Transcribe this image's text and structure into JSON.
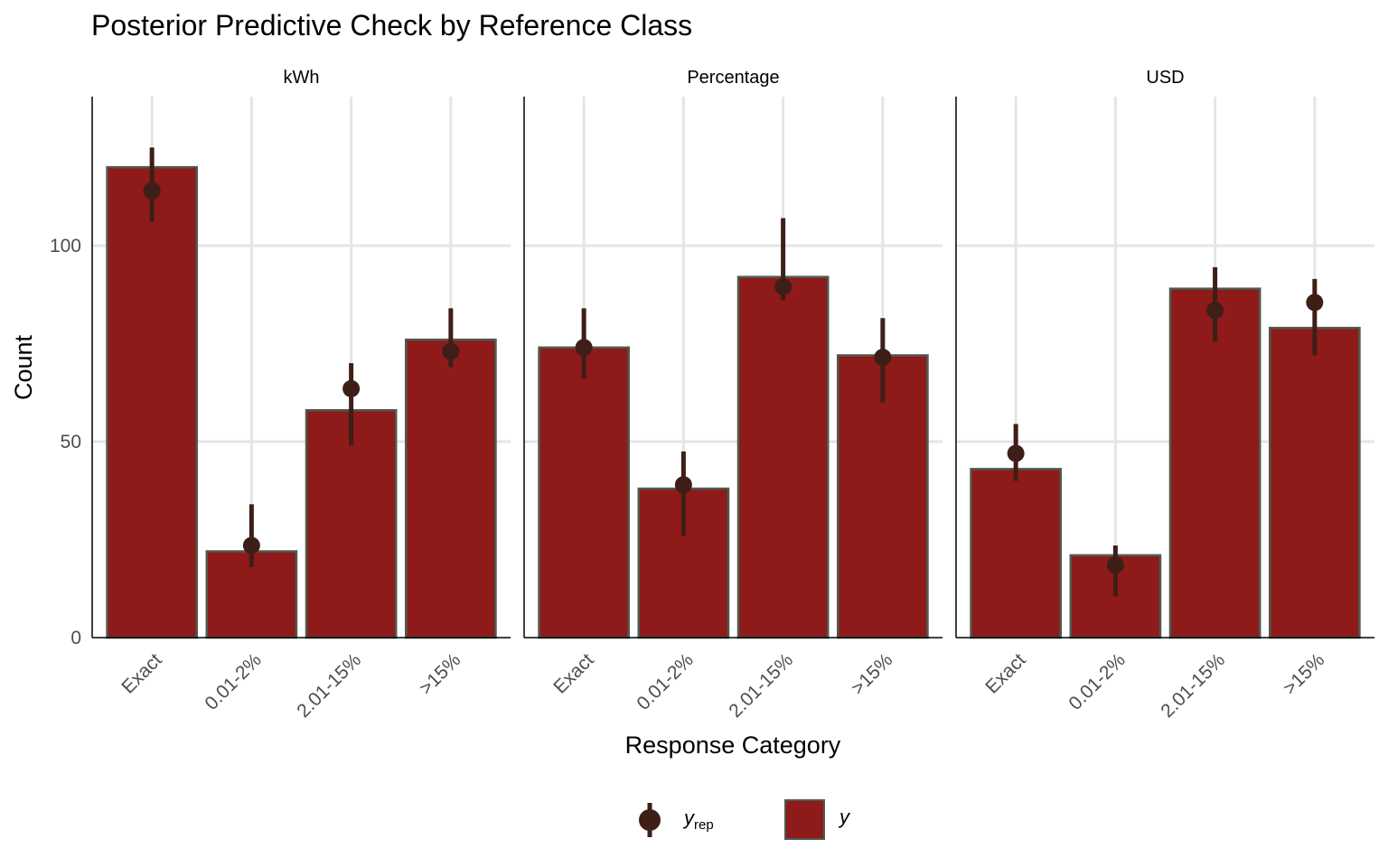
{
  "chart_data": {
    "type": "bar",
    "title": "Posterior Predictive Check by Reference Class",
    "xlabel": "Response Category",
    "ylabel": "Count",
    "ylim": [
      0,
      138
    ],
    "yticks": [
      0,
      50,
      100
    ],
    "grid": true,
    "legend_position": "bottom",
    "categories": [
      "Exact",
      "0.01-2%",
      "2.01-15%",
      ">15%"
    ],
    "colors": {
      "bar_fill": "#8E1A1A",
      "bar_stroke": "#4F5A4F",
      "point": "#3D1F17",
      "grid": "#E5E5E5",
      "axis": "#000000",
      "text": "#000000",
      "tick_text": "#4D4D4D"
    },
    "panels": [
      {
        "name": "kWh",
        "y": [
          120,
          22,
          58,
          76
        ],
        "y_rep": [
          {
            "median": 114,
            "low": 106,
            "high": 125
          },
          {
            "median": 23.5,
            "low": 18,
            "high": 34
          },
          {
            "median": 63.5,
            "low": 49,
            "high": 70
          },
          {
            "median": 73,
            "low": 69,
            "high": 84
          }
        ]
      },
      {
        "name": "Percentage",
        "y": [
          74,
          38,
          92,
          72
        ],
        "y_rep": [
          {
            "median": 74,
            "low": 66,
            "high": 84
          },
          {
            "median": 39,
            "low": 26,
            "high": 47.5
          },
          {
            "median": 89.5,
            "low": 86,
            "high": 107
          },
          {
            "median": 71.5,
            "low": 60,
            "high": 81.5
          }
        ]
      },
      {
        "name": "USD",
        "y": [
          43,
          21,
          89,
          79
        ],
        "y_rep": [
          {
            "median": 47,
            "low": 40,
            "high": 54.5
          },
          {
            "median": 18.5,
            "low": 10.5,
            "high": 23.5
          },
          {
            "median": 83.5,
            "low": 75.5,
            "high": 94.5
          },
          {
            "median": 85.5,
            "low": 72,
            "high": 91.5
          }
        ]
      }
    ],
    "legend": [
      {
        "key": "y_rep",
        "label_main": "y",
        "label_sub": "rep",
        "symbol": "point-interval"
      },
      {
        "key": "y",
        "label_main": "y",
        "label_sub": "",
        "symbol": "bar"
      }
    ]
  }
}
